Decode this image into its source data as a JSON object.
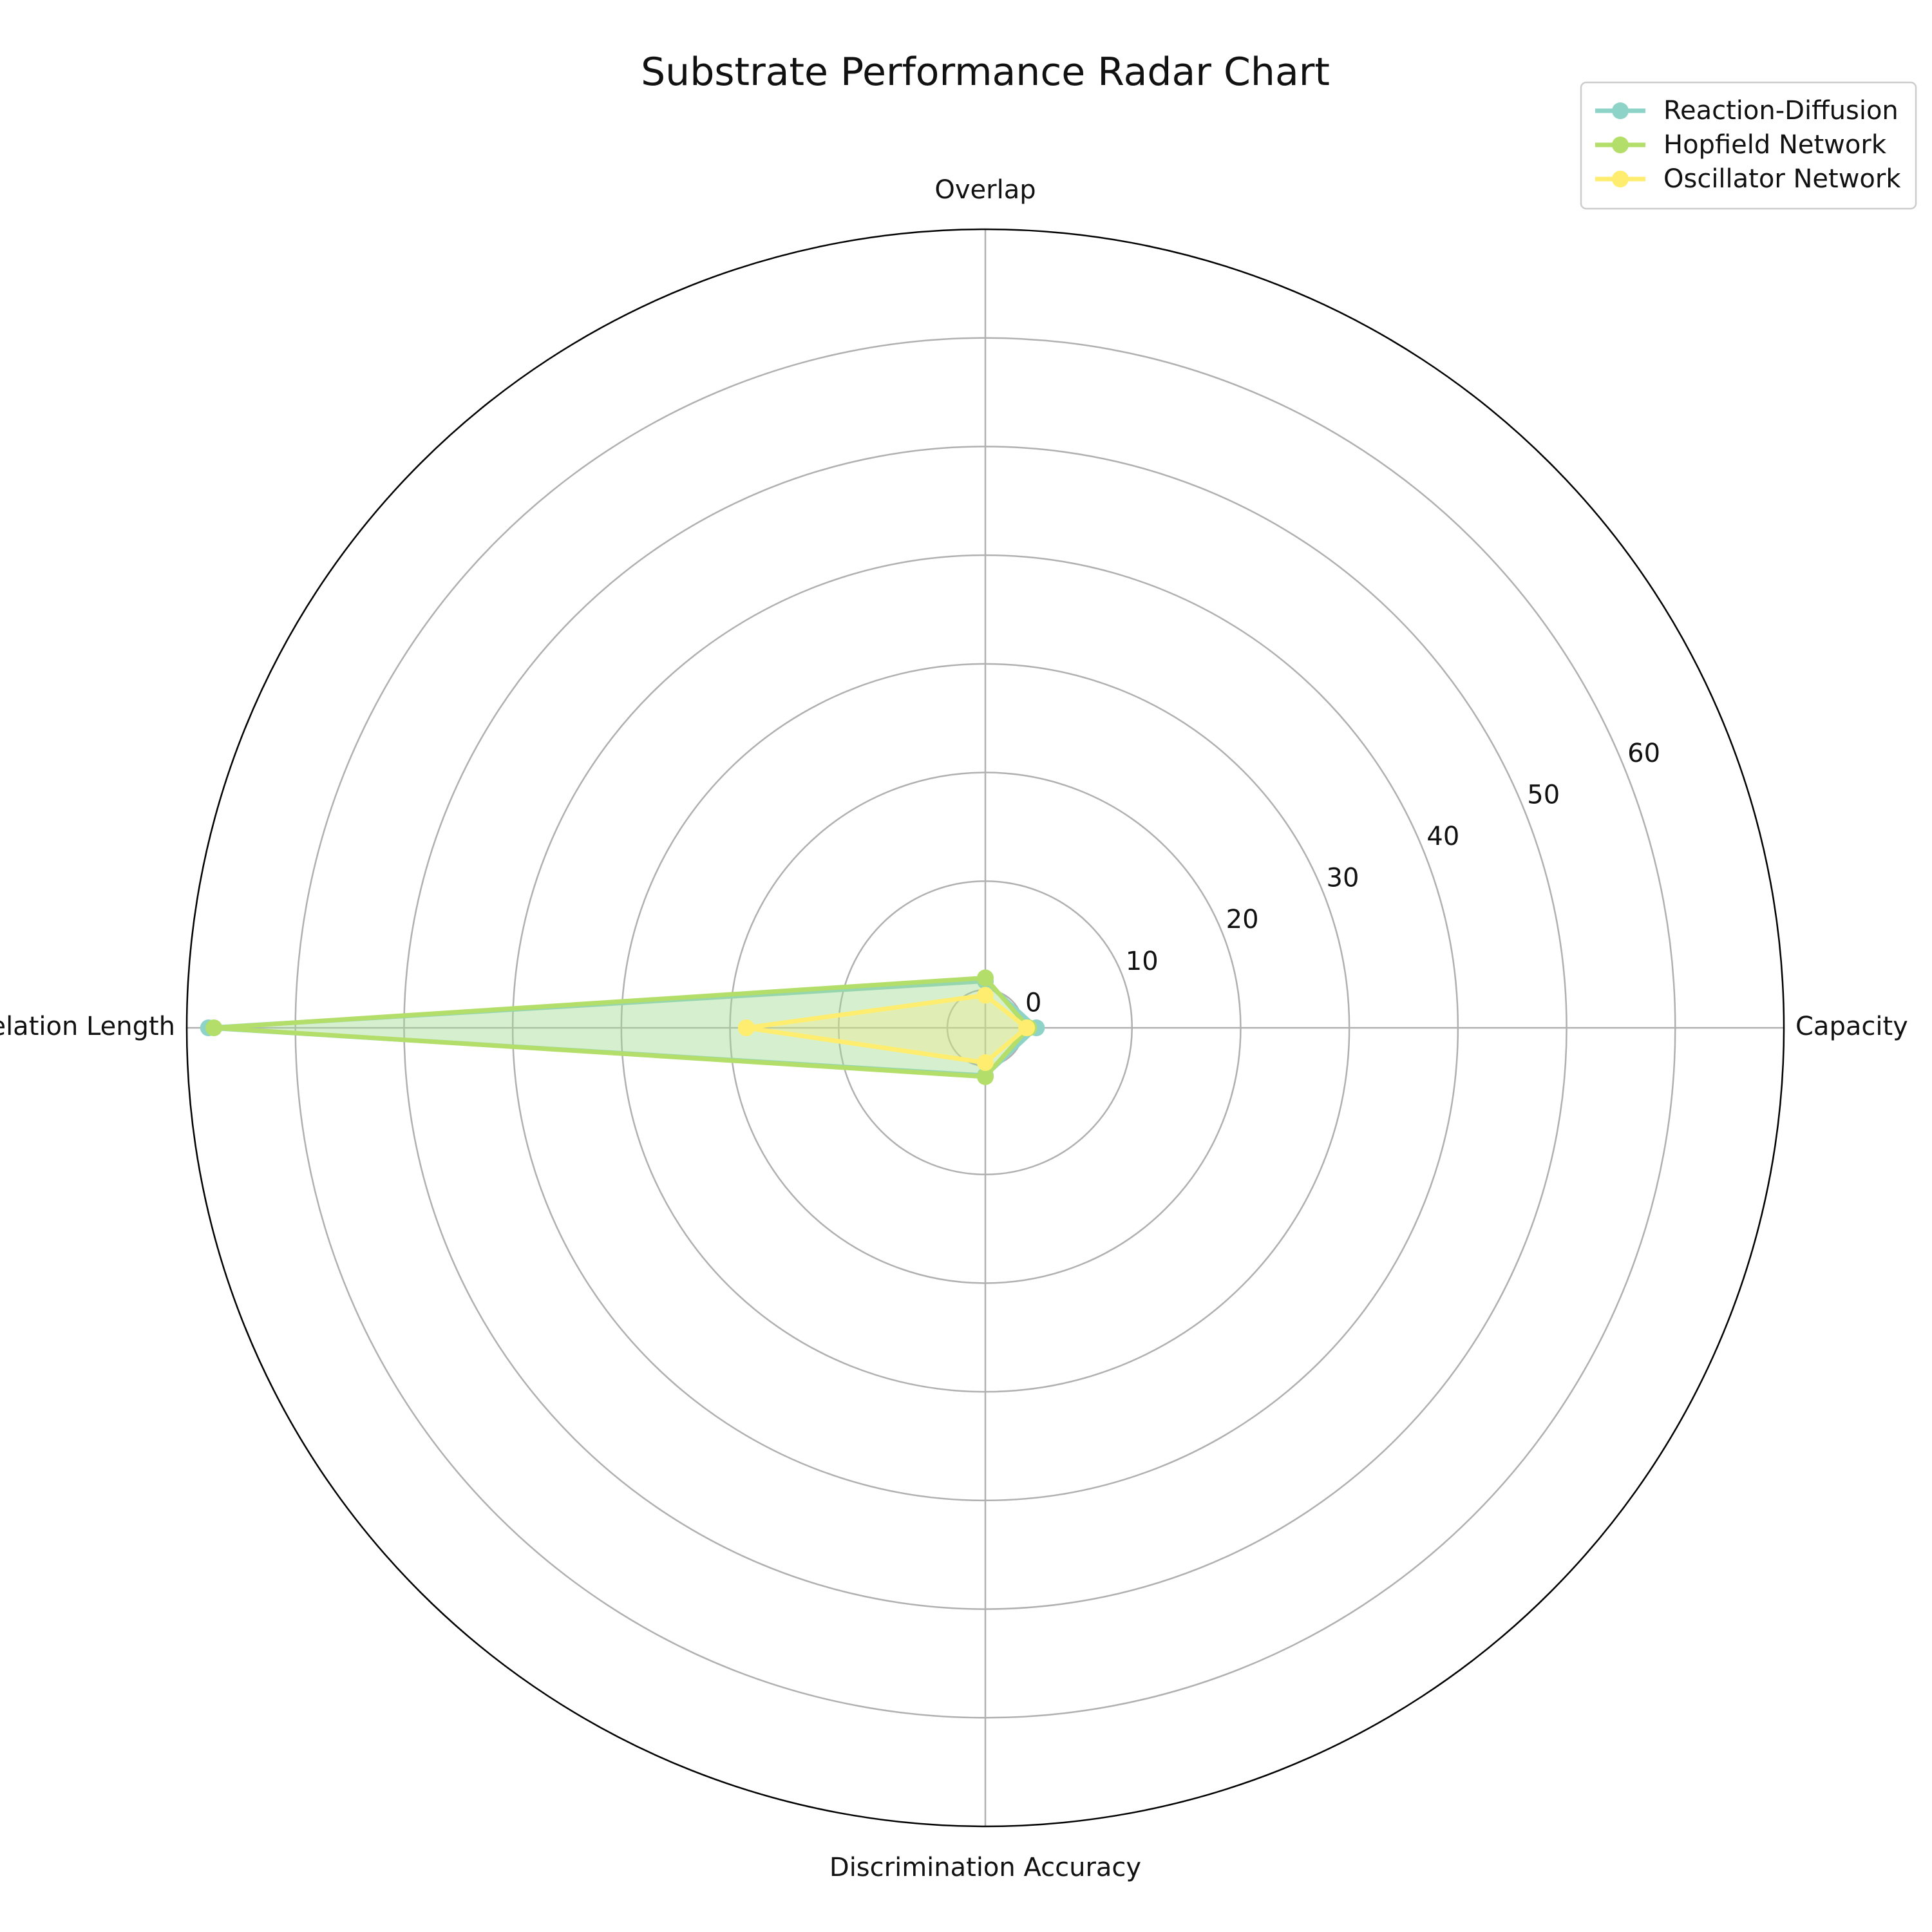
{
  "chart_data": {
    "type": "radar",
    "title": "Substrate Performance Radar Chart",
    "categories": [
      "Capacity",
      "Overlap",
      "Correlation Length",
      "Discrimination Accuracy"
    ],
    "r_ticks": [
      0,
      10,
      20,
      30,
      40,
      50,
      60
    ],
    "rlim": [
      -3.5,
      70
    ],
    "grid": true,
    "legend_position": "top-right",
    "series": [
      {
        "name": "Reaction-Diffusion",
        "color": "#8dd3c7",
        "values": [
          1.2,
          0.8,
          68.0,
          0.9
        ]
      },
      {
        "name": "Hopfield Network",
        "color": "#b3de69",
        "values": [
          0.5,
          1.1,
          67.5,
          1.0
        ]
      },
      {
        "name": "Oscillator Network",
        "color": "#ffed6f",
        "values": [
          0.3,
          -0.5,
          18.5,
          -0.3
        ]
      }
    ]
  }
}
